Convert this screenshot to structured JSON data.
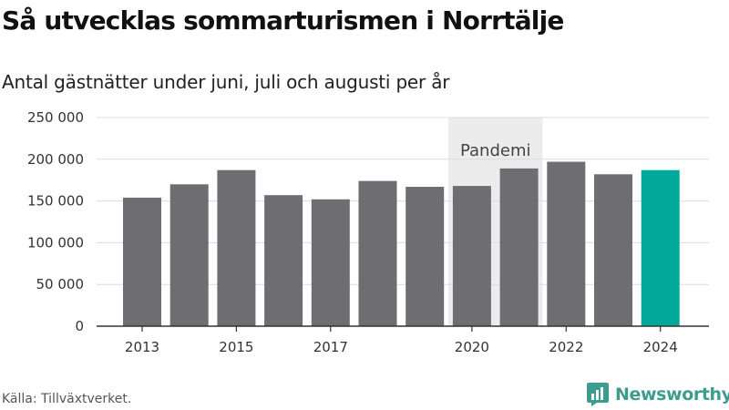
{
  "title": "Så utvecklas sommarturismen i Norrtälje",
  "subtitle": "Antal gästnätter under juni, juli och augusti per år",
  "source": "Källa: Tillväxtverket.",
  "brand": {
    "name": "Newsworthy",
    "color": "#3e9c8f"
  },
  "colors": {
    "bar": "#6e6d71",
    "highlight": "#00a89a",
    "band": "#ececec",
    "grid": "#dcdcdc",
    "axis": "#333333"
  },
  "chart_data": {
    "type": "bar",
    "categories": [
      "2013",
      "2014",
      "2015",
      "2016",
      "2017",
      "2018",
      "2019",
      "2020",
      "2021",
      "2022",
      "2023",
      "2024"
    ],
    "values": [
      154000,
      170000,
      187000,
      157000,
      152000,
      174000,
      167000,
      168000,
      189000,
      197000,
      182000,
      187000
    ],
    "highlight_category": "2024",
    "x_tick_labels": [
      "2013",
      "2015",
      "2017",
      "2020",
      "2022",
      "2024"
    ],
    "y_ticks": [
      0,
      50000,
      100000,
      150000,
      200000,
      250000
    ],
    "y_tick_labels": [
      "0",
      "50 000",
      "100 000",
      "150 000",
      "200 000",
      "250 000"
    ],
    "ylim": [
      0,
      250000
    ],
    "grid": true,
    "annotation": {
      "label": "Pandemi",
      "from": "2020",
      "to": "2021"
    }
  }
}
